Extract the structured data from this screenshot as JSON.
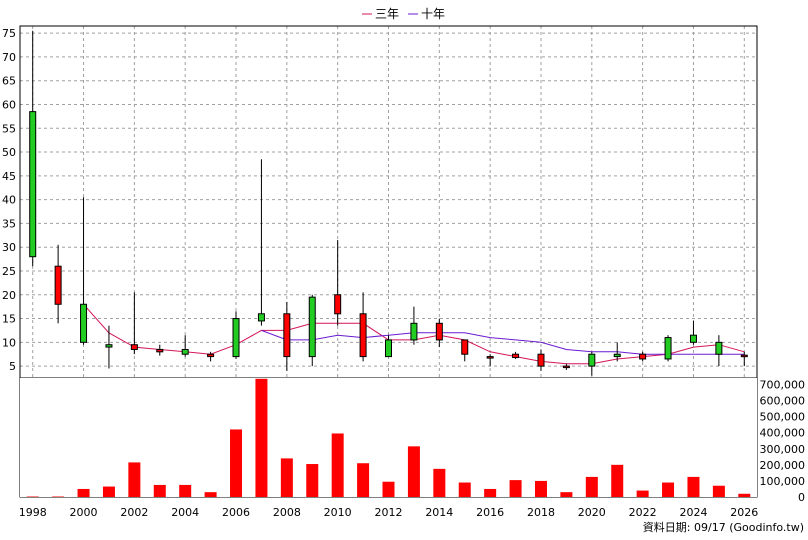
{
  "legend": [
    {
      "name": "三年",
      "color": "#d4145a"
    },
    {
      "name": "十年",
      "color": "#6a1bd1"
    }
  ],
  "footer": "資料日期: 09/17 (Goodinfo.tw)",
  "chart_data": {
    "type": "candlestick+bar",
    "x_range": [
      1997.5,
      2026.5
    ],
    "x_ticks": [
      1998,
      2000,
      2002,
      2004,
      2006,
      2008,
      2010,
      2012,
      2014,
      2016,
      2018,
      2020,
      2022,
      2024,
      2026
    ],
    "price_axis": {
      "ylim": [
        2.5,
        76.5
      ],
      "ticks": [
        5,
        10,
        15,
        20,
        25,
        30,
        35,
        40,
        45,
        50,
        55,
        60,
        65,
        70,
        75
      ]
    },
    "volume_axis": {
      "ylim": [
        0,
        740000
      ],
      "ticks": [
        0,
        100000,
        200000,
        300000,
        400000,
        500000,
        600000,
        700000
      ],
      "tick_labels": [
        "0",
        "100,000",
        "200,000",
        "300,000",
        "400,000",
        "500,000",
        "600,000",
        "700,000"
      ]
    },
    "candles": [
      {
        "year": 1998,
        "open": 28,
        "high": 75.5,
        "low": 26,
        "close": 58.5
      },
      {
        "year": 1999,
        "open": 26,
        "high": 30.5,
        "low": 14,
        "close": 18
      },
      {
        "year": 2000,
        "open": 10,
        "high": 40.5,
        "low": 9.5,
        "close": 18
      },
      {
        "year": 2001,
        "open": 9,
        "high": 13.5,
        "low": 4.5,
        "close": 9.5
      },
      {
        "year": 2002,
        "open": 9.5,
        "high": 20.5,
        "low": 7.5,
        "close": 8.5
      },
      {
        "year": 2003,
        "open": 8.5,
        "high": 9.5,
        "low": 7.2,
        "close": 8
      },
      {
        "year": 2004,
        "open": 7.5,
        "high": 11.5,
        "low": 7,
        "close": 8.5
      },
      {
        "year": 2005,
        "open": 7.5,
        "high": 8,
        "low": 6,
        "close": 7
      },
      {
        "year": 2006,
        "open": 7,
        "high": 16.5,
        "low": 6.5,
        "close": 15
      },
      {
        "year": 2007,
        "open": 14.5,
        "high": 48.5,
        "low": 13.5,
        "close": 16
      },
      {
        "year": 2008,
        "open": 16,
        "high": 18.5,
        "low": 4,
        "close": 7
      },
      {
        "year": 2009,
        "open": 7,
        "high": 20,
        "low": 5,
        "close": 19.5
      },
      {
        "year": 2010,
        "open": 20,
        "high": 31.5,
        "low": 13.5,
        "close": 16
      },
      {
        "year": 2011,
        "open": 16,
        "high": 20.5,
        "low": 6,
        "close": 7
      },
      {
        "year": 2012,
        "open": 7,
        "high": 11.5,
        "low": 7,
        "close": 10.5
      },
      {
        "year": 2013,
        "open": 10.5,
        "high": 17.5,
        "low": 9.5,
        "close": 14
      },
      {
        "year": 2014,
        "open": 14,
        "high": 15,
        "low": 9,
        "close": 10.5
      },
      {
        "year": 2015,
        "open": 10.5,
        "high": 10.5,
        "low": 6,
        "close": 7.5
      },
      {
        "year": 2016,
        "open": 7,
        "high": 7.5,
        "low": 5,
        "close": 6.8
      },
      {
        "year": 2017,
        "open": 7.5,
        "high": 8,
        "low": 6.5,
        "close": 6.8
      },
      {
        "year": 2018,
        "open": 7.5,
        "high": 8.5,
        "low": 4,
        "close": 5
      },
      {
        "year": 2019,
        "open": 5,
        "high": 5.5,
        "low": 4.2,
        "close": 4.8
      },
      {
        "year": 2020,
        "open": 5,
        "high": 8,
        "low": 3,
        "close": 7.5
      },
      {
        "year": 2021,
        "open": 7,
        "high": 10,
        "low": 6,
        "close": 7.5
      },
      {
        "year": 2022,
        "open": 7.5,
        "high": 8,
        "low": 6,
        "close": 6.5
      },
      {
        "year": 2023,
        "open": 6.5,
        "high": 11.5,
        "low": 6,
        "close": 11
      },
      {
        "year": 2024,
        "open": 10,
        "high": 14.5,
        "low": 9.5,
        "close": 11.5
      },
      {
        "year": 2025,
        "open": 7.5,
        "high": 11.5,
        "low": 5,
        "close": 10
      },
      {
        "year": 2026,
        "open": 7.3,
        "high": 8,
        "low": 5,
        "close": 7
      }
    ],
    "series": [
      {
        "name": "三年",
        "color": "#d4145a",
        "x": [
          2000,
          2001,
          2002,
          2003,
          2004,
          2005,
          2006,
          2007,
          2008,
          2009,
          2010,
          2011,
          2012,
          2013,
          2014,
          2015,
          2016,
          2017,
          2018,
          2019,
          2020,
          2021,
          2022,
          2023,
          2024,
          2025,
          2026
        ],
        "values": [
          18,
          12,
          9,
          8.5,
          8,
          7.5,
          9.5,
          12.5,
          12.5,
          14,
          14,
          14,
          10.5,
          10.5,
          11.5,
          10.5,
          8,
          7,
          6,
          5.5,
          5.5,
          6.5,
          7,
          7.5,
          9,
          9.5,
          8
        ]
      },
      {
        "name": "十年",
        "color": "#6a1bd1",
        "x": [
          2007,
          2008,
          2009,
          2010,
          2011,
          2012,
          2013,
          2014,
          2015,
          2016,
          2017,
          2018,
          2019,
          2020,
          2021,
          2022,
          2023,
          2024,
          2025,
          2026
        ],
        "values": [
          12.5,
          10.5,
          10.5,
          11.5,
          11,
          11.5,
          12,
          12,
          12,
          11,
          10.5,
          10,
          8.5,
          8,
          8,
          7.5,
          7.5,
          7.5,
          7.5,
          7.5
        ]
      }
    ],
    "volume": {
      "color": "#ff0000",
      "x": [
        1998,
        1999,
        2000,
        2001,
        2002,
        2003,
        2004,
        2005,
        2006,
        2007,
        2008,
        2009,
        2010,
        2011,
        2012,
        2013,
        2014,
        2015,
        2016,
        2017,
        2018,
        2019,
        2020,
        2021,
        2022,
        2023,
        2024,
        2025,
        2026
      ],
      "values": [
        3000,
        3000,
        50000,
        65000,
        215000,
        75000,
        75000,
        30000,
        420000,
        735000,
        240000,
        205000,
        395000,
        210000,
        95000,
        315000,
        175000,
        90000,
        50000,
        105000,
        100000,
        30000,
        125000,
        200000,
        40000,
        90000,
        125000,
        70000,
        20000
      ]
    },
    "grid": true,
    "legend_position": "top-center"
  }
}
